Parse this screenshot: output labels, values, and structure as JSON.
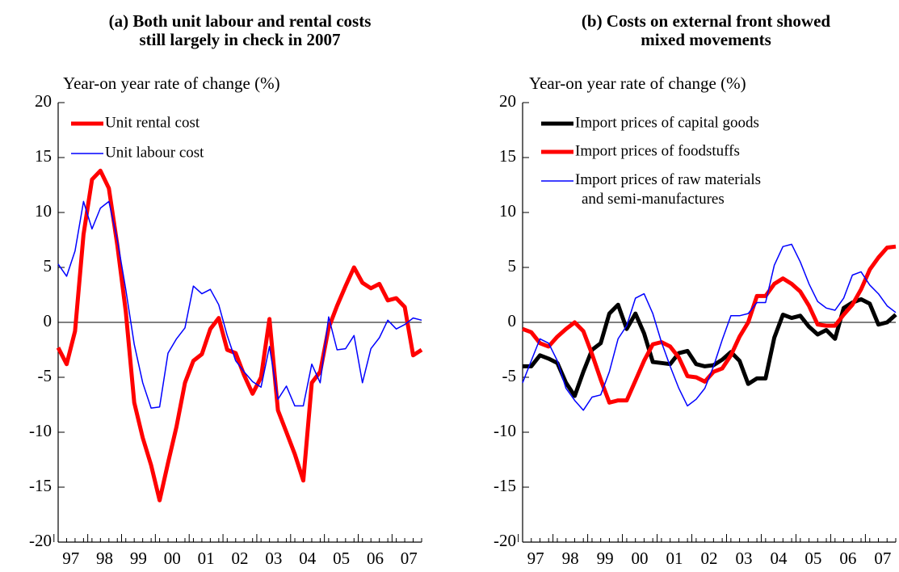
{
  "chart_data": [
    {
      "type": "line",
      "title": "(a) Both unit labour and rental costs\nstill largely in check in 2007",
      "y_label": "Year-on year rate of change (%)",
      "categories": [
        null,
        "97",
        null,
        null,
        null,
        "98",
        null,
        null,
        null,
        "99",
        null,
        null,
        null,
        "00",
        null,
        null,
        null,
        "01",
        null,
        null,
        null,
        "02",
        null,
        null,
        null,
        "03",
        null,
        null,
        null,
        "04",
        null,
        null,
        null,
        "05",
        null,
        null,
        null,
        "06",
        null,
        null,
        null,
        "07",
        null,
        null
      ],
      "ylim": [
        -20,
        20
      ],
      "yticks": [
        -20,
        -15,
        -10,
        -5,
        0,
        5,
        10,
        15,
        20
      ],
      "series": [
        {
          "name": "Unit rental cost",
          "color": "#ff0000",
          "values": [
            -2.3,
            -3.8,
            -0.8,
            8,
            13,
            13.8,
            12.2,
            7,
            1,
            -7.3,
            -10.5,
            -13,
            -16.2,
            -12.8,
            -9.5,
            -5.5,
            -3.5,
            -2.9,
            -0.6,
            0.4,
            -2.5,
            -2.8,
            -4.8,
            -6.5,
            -5,
            0.3,
            -8,
            -10,
            -12,
            -14.4,
            -5.5,
            -4.5,
            -0.5,
            1.5,
            3.3,
            5,
            3.6,
            3.1,
            3.5,
            2,
            2.2,
            1.4,
            -3,
            -2.5
          ]
        },
        {
          "name": "Unit labour cost",
          "color": "#0000ff",
          "values": [
            5.3,
            4.2,
            6.5,
            11,
            8.5,
            10.4,
            11,
            7.5,
            3,
            -2,
            -5.5,
            -7.8,
            -7.7,
            -2.8,
            -1.5,
            -0.5,
            3.3,
            2.6,
            3,
            1.6,
            -1.2,
            -3.5,
            -4.5,
            -5.4,
            -5.9,
            -2.2,
            -7,
            -5.8,
            -7.6,
            -7.6,
            -3.8,
            -5.5,
            0.5,
            -2.5,
            -2.4,
            -1.2,
            -5.5,
            -2.4,
            -1.4,
            0.2,
            -0.6,
            -0.2,
            0.4,
            0.2
          ]
        }
      ]
    },
    {
      "type": "line",
      "title": "(b) Costs on external front showed\nmixed movements",
      "y_label": "Year-on year rate of change (%)",
      "categories": [
        null,
        "97",
        null,
        null,
        null,
        "98",
        null,
        null,
        null,
        "99",
        null,
        null,
        null,
        "00",
        null,
        null,
        null,
        "01",
        null,
        null,
        null,
        "02",
        null,
        null,
        null,
        "03",
        null,
        null,
        null,
        "04",
        null,
        null,
        null,
        "05",
        null,
        null,
        null,
        "06",
        null,
        null,
        null,
        "07",
        null,
        null
      ],
      "ylim": [
        -20,
        20
      ],
      "yticks": [
        -20,
        -15,
        -10,
        -5,
        0,
        5,
        10,
        15,
        20
      ],
      "series": [
        {
          "name": "Import prices of capital goods",
          "color": "#000000",
          "values": [
            -4,
            -4,
            -3,
            -3.3,
            -3.7,
            -5.5,
            -6.7,
            -4.5,
            -2.5,
            -1.9,
            0.8,
            1.6,
            -0.6,
            0.8,
            -1,
            -3.6,
            -3.7,
            -3.8,
            -2.8,
            -2.6,
            -3.8,
            -4,
            -3.9,
            -3.4,
            -2.7,
            -3.5,
            -5.6,
            -5.1,
            -5.1,
            -1.4,
            0.7,
            0.4,
            0.6,
            -0.4,
            -1.1,
            -0.7,
            -1.5,
            1.3,
            1.8,
            2.1,
            1.7,
            -0.2,
            0,
            0.7
          ]
        },
        {
          "name": "Import prices of foodstuffs",
          "color": "#ff0000",
          "values": [
            -0.6,
            -0.9,
            -1.9,
            -2.2,
            -1.3,
            -0.6,
            0,
            -0.8,
            -2.9,
            -5.2,
            -7.3,
            -7.1,
            -7.1,
            -5.3,
            -3.5,
            -2,
            -1.8,
            -2.2,
            -3.2,
            -4.9,
            -5,
            -5.4,
            -4.5,
            -4.2,
            -3,
            -1.3,
            0,
            2.4,
            2.4,
            3.5,
            4,
            3.5,
            2.8,
            1.5,
            -0.2,
            -0.3,
            -0.3,
            0.7,
            1.6,
            3,
            4.8,
            5.9,
            6.8,
            6.9
          ]
        },
        {
          "name": "Import prices of raw materials\nand semi-manufactures",
          "color": "#0000ff",
          "values": [
            -5.5,
            -3.5,
            -1.5,
            -1.9,
            -3.5,
            -6,
            -7.1,
            -8,
            -6.8,
            -6.6,
            -4.5,
            -1.5,
            -0.3,
            2.2,
            2.6,
            0.8,
            -1.8,
            -4,
            -6,
            -7.6,
            -7,
            -6,
            -4,
            -1.6,
            0.6,
            0.6,
            0.8,
            1.8,
            1.8,
            5.2,
            6.9,
            7.1,
            5.5,
            3.5,
            1.9,
            1.3,
            1.1,
            2.2,
            4.3,
            4.6,
            3.4,
            2.6,
            1.5,
            0.9
          ]
        }
      ]
    }
  ]
}
